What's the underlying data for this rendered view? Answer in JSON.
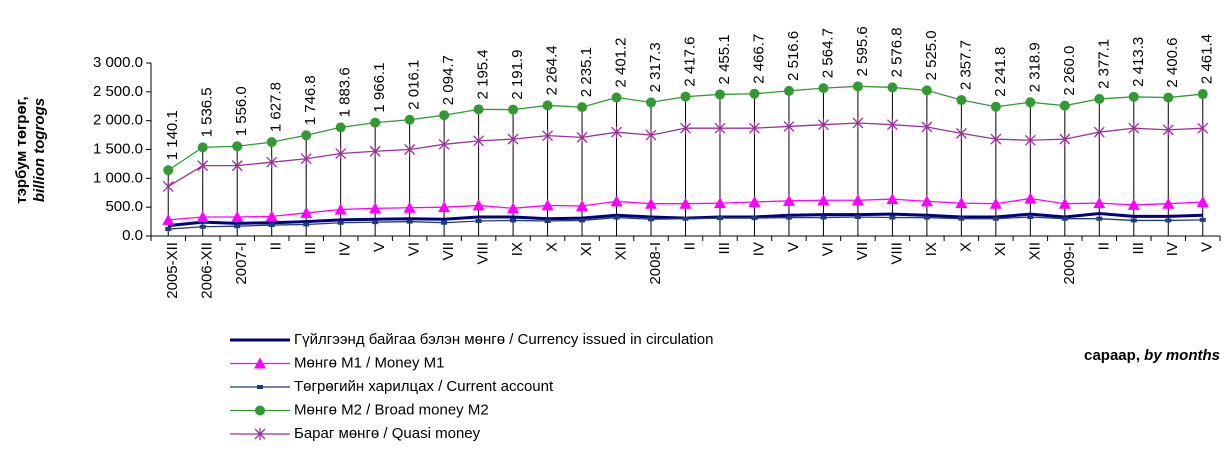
{
  "chart_data": {
    "type": "line",
    "ylabel": [
      "тэрбум төгрөг,",
      "billion togrogs"
    ],
    "xlabel": {
      "text": "сараар,",
      "italic": "by months"
    },
    "categories": [
      "2005-XII",
      "2006-XII",
      "2007-I",
      "II",
      "III",
      "IV",
      "V",
      "VI",
      "VII",
      "VIII",
      "IX",
      "X",
      "XI",
      "XII",
      "2008-I",
      "II",
      "III",
      "IV",
      "V",
      "VI",
      "VII",
      "VIII",
      "IX",
      "X",
      "XI",
      "XII",
      "2009-I",
      "II",
      "III",
      "IV",
      "V"
    ],
    "ylim": [
      0,
      3000
    ],
    "yticks": [
      {
        "value": 0,
        "label": "0.0"
      },
      {
        "value": 500,
        "label": "500.0"
      },
      {
        "value": 1000,
        "label": "1 000.0"
      },
      {
        "value": 1500,
        "label": "1 500.0"
      },
      {
        "value": 2000,
        "label": "2 000.0"
      },
      {
        "value": 2500,
        "label": "2 500.0"
      },
      {
        "value": 3000,
        "label": "3 000.0"
      }
    ],
    "series": [
      {
        "name": "Гүйлгээнд   байгаа бэлэн мөнгө / Currency issued  in circulation",
        "color": "#000080",
        "marker": "none",
        "values": [
          180,
          240,
          220,
          230,
          250,
          280,
          290,
          300,
          290,
          330,
          330,
          300,
          310,
          360,
          330,
          310,
          330,
          330,
          360,
          370,
          370,
          380,
          360,
          330,
          330,
          380,
          330,
          390,
          340,
          340,
          360
        ]
      },
      {
        "name": " Мөнгө М1 /  Money M1",
        "color": "#ff00ff",
        "marker": "triangle",
        "values": [
          280,
          330,
          330,
          340,
          400,
          460,
          480,
          490,
          500,
          530,
          480,
          530,
          520,
          600,
          560,
          560,
          570,
          590,
          610,
          620,
          620,
          640,
          600,
          570,
          560,
          650,
          560,
          570,
          540,
          560,
          590
        ]
      },
      {
        "name": "Төгрөгийн харилцах / Current account",
        "color": "#1f3d7a",
        "marker": "square",
        "values": [
          120,
          160,
          170,
          190,
          200,
          230,
          240,
          250,
          230,
          260,
          270,
          260,
          270,
          320,
          290,
          300,
          310,
          310,
          320,
          320,
          330,
          320,
          320,
          300,
          300,
          330,
          300,
          300,
          270,
          270,
          280
        ]
      },
      {
        "name": "  Мөнгө М2 /   Broad money M2",
        "color": "#339933",
        "marker": "circle",
        "labels": true,
        "values": [
          1140.1,
          1536.5,
          1556.0,
          1627.8,
          1746.8,
          1883.6,
          1966.1,
          2016.1,
          2094.7,
          2195.4,
          2191.9,
          2264.4,
          2235.1,
          2401.2,
          2317.3,
          2417.6,
          2455.1,
          2466.7,
          2516.6,
          2564.7,
          2595.6,
          2576.8,
          2525.0,
          2357.7,
          2241.8,
          2318.9,
          2260.0,
          2377.1,
          2413.3,
          2400.6,
          2461.4
        ],
        "value_labels": [
          "1 140.1",
          "1 536.5",
          "1 556.0",
          "1 627.8",
          "1 746.8",
          "1 883.6",
          "1 966.1",
          "2 016.1",
          "2 094.7",
          "2 195.4",
          "2 191.9",
          "2 264.4",
          "2 235.1",
          "2 401.2",
          "2 317.3",
          "2 417.6",
          "2 455.1",
          "2 466.7",
          "2 516.6",
          "2 564.7",
          "2 595.6",
          "2 576.8",
          "2 525.0",
          "2 357.7",
          "2 241.8",
          "2 318.9",
          "2 260.0",
          "2 377.1",
          "2 413.3",
          "2 400.6",
          "2 461.4"
        ]
      },
      {
        "name": "Бараг мөнгө / Quasi money",
        "color": "#993399",
        "marker": "star",
        "values": [
          860,
          1220,
          1220,
          1280,
          1340,
          1430,
          1470,
          1500,
          1590,
          1650,
          1680,
          1740,
          1710,
          1800,
          1750,
          1870,
          1870,
          1870,
          1900,
          1930,
          1960,
          1930,
          1890,
          1780,
          1680,
          1660,
          1680,
          1800,
          1870,
          1840,
          1870
        ]
      }
    ]
  }
}
